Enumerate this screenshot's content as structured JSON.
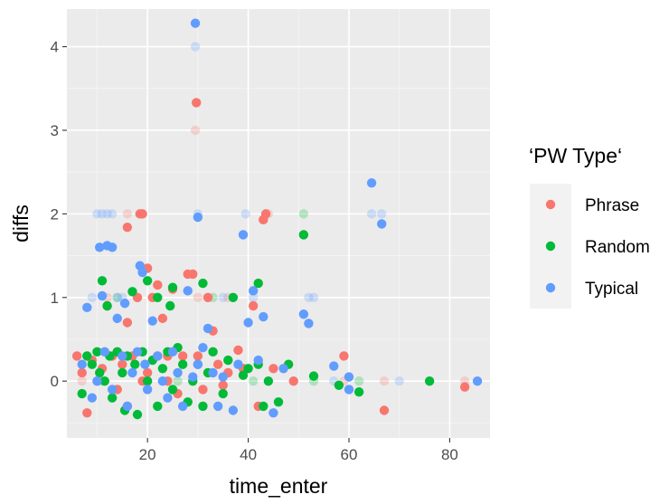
{
  "chart_data": {
    "type": "scatter",
    "xlabel": "time_enter",
    "ylabel": "diffs",
    "xlim": [
      4,
      88
    ],
    "ylim": [
      -0.68,
      4.45
    ],
    "x_ticks": [
      20,
      40,
      60,
      80
    ],
    "y_ticks": [
      0,
      1,
      2,
      3,
      4
    ],
    "grid": true,
    "legend": {
      "title": "‘PW Type‘",
      "position": "right"
    },
    "series": [
      {
        "name": "Phrase",
        "color": "#F8766D",
        "points": [
          [
            6,
            0.3
          ],
          [
            7,
            0.1
          ],
          [
            8,
            -0.38
          ],
          [
            9,
            0.25
          ],
          [
            10,
            0.0
          ],
          [
            11,
            0.15
          ],
          [
            12,
            0.9
          ],
          [
            13,
            0.3
          ],
          [
            14,
            -0.1
          ],
          [
            15,
            0.2
          ],
          [
            16,
            1.84
          ],
          [
            16,
            0.7
          ],
          [
            16,
            -0.3
          ],
          [
            17,
            0.3
          ],
          [
            18,
            1.0
          ],
          [
            18.5,
            2.0
          ],
          [
            19,
            2.0
          ],
          [
            19,
            0.0
          ],
          [
            20,
            1.35
          ],
          [
            20,
            0.1
          ],
          [
            21,
            1.0
          ],
          [
            22,
            1.15
          ],
          [
            22,
            0.3
          ],
          [
            23,
            0.75
          ],
          [
            24,
            0.0
          ],
          [
            24,
            0.3
          ],
          [
            25,
            1.1
          ],
          [
            26,
            -0.15
          ],
          [
            27,
            0.3
          ],
          [
            28,
            1.28
          ],
          [
            29,
            1.28
          ],
          [
            29.7,
            3.33
          ],
          [
            30,
            0.3
          ],
          [
            31,
            -0.1
          ],
          [
            32,
            1.0
          ],
          [
            33,
            0.6
          ],
          [
            34,
            0.2
          ],
          [
            35,
            -0.05
          ],
          [
            36,
            0.1
          ],
          [
            38,
            0.37
          ],
          [
            39,
            0.15
          ],
          [
            41,
            0.9
          ],
          [
            42,
            -0.3
          ],
          [
            43,
            1.93
          ],
          [
            43.5,
            2.0
          ],
          [
            45,
            0.15
          ],
          [
            49,
            0.0
          ],
          [
            59,
            0.3
          ],
          [
            67,
            -0.35
          ],
          [
            83,
            -0.07
          ]
        ]
      },
      {
        "name": "Random",
        "color": "#00BA38",
        "points": [
          [
            7,
            -0.15
          ],
          [
            8,
            0.3
          ],
          [
            9,
            0.2
          ],
          [
            10,
            0.35
          ],
          [
            10.5,
            0.1
          ],
          [
            11,
            1.2
          ],
          [
            11.5,
            0.0
          ],
          [
            12,
            0.9
          ],
          [
            12.5,
            0.3
          ],
          [
            13,
            -0.2
          ],
          [
            14,
            0.35
          ],
          [
            15,
            0.1
          ],
          [
            15.5,
            -0.35
          ],
          [
            16,
            0.3
          ],
          [
            17,
            1.07
          ],
          [
            17.5,
            0.2
          ],
          [
            18,
            -0.4
          ],
          [
            19,
            0.35
          ],
          [
            20,
            1.2
          ],
          [
            20,
            0.0
          ],
          [
            21,
            0.25
          ],
          [
            22,
            1.0
          ],
          [
            22,
            -0.3
          ],
          [
            23,
            0.15
          ],
          [
            24,
            0.35
          ],
          [
            24.5,
            0.9
          ],
          [
            25,
            1.12
          ],
          [
            25,
            -0.1
          ],
          [
            26,
            0.4
          ],
          [
            27,
            0.2
          ],
          [
            28,
            -0.25
          ],
          [
            29,
            0.0
          ],
          [
            30,
            0.2
          ],
          [
            31,
            1.17
          ],
          [
            31,
            -0.3
          ],
          [
            32,
            0.1
          ],
          [
            33,
            0.35
          ],
          [
            35,
            -0.15
          ],
          [
            36,
            0.25
          ],
          [
            37,
            1.0
          ],
          [
            39,
            0.07
          ],
          [
            40,
            0.15
          ],
          [
            42,
            1.17
          ],
          [
            42,
            0.2
          ],
          [
            43,
            -0.3
          ],
          [
            44,
            0.0
          ],
          [
            46,
            -0.25
          ],
          [
            48,
            0.2
          ],
          [
            51,
            1.75
          ],
          [
            53,
            0.06
          ],
          [
            58,
            -0.05
          ],
          [
            62,
            -0.13
          ],
          [
            76,
            0.0
          ]
        ]
      },
      {
        "name": "Typical",
        "color": "#619CFF",
        "points": [
          [
            7,
            0.2
          ],
          [
            8,
            0.88
          ],
          [
            9,
            -0.2
          ],
          [
            10,
            0.0
          ],
          [
            10.5,
            1.6
          ],
          [
            11,
            1.02
          ],
          [
            11.5,
            0.35
          ],
          [
            12,
            1.62
          ],
          [
            13,
            1.6
          ],
          [
            13,
            -0.1
          ],
          [
            14,
            0.75
          ],
          [
            15,
            0.3
          ],
          [
            15.5,
            0.93
          ],
          [
            16,
            -0.3
          ],
          [
            17,
            0.1
          ],
          [
            18,
            0.35
          ],
          [
            18.5,
            1.38
          ],
          [
            19,
            1.3
          ],
          [
            19.5,
            0.2
          ],
          [
            20,
            -0.1
          ],
          [
            21,
            0.72
          ],
          [
            22,
            0.3
          ],
          [
            23,
            0.0
          ],
          [
            24,
            -0.2
          ],
          [
            25,
            0.35
          ],
          [
            26,
            0.1
          ],
          [
            27,
            -0.3
          ],
          [
            28,
            1.08
          ],
          [
            29,
            0.05
          ],
          [
            29.5,
            4.28
          ],
          [
            30,
            1.96
          ],
          [
            30,
            0.2
          ],
          [
            31,
            0.4
          ],
          [
            32,
            0.63
          ],
          [
            33,
            0.1
          ],
          [
            34,
            -0.3
          ],
          [
            35,
            0.05
          ],
          [
            37,
            -0.35
          ],
          [
            38,
            0.2
          ],
          [
            39,
            1.75
          ],
          [
            40,
            0.7
          ],
          [
            41,
            1.08
          ],
          [
            42,
            0.25
          ],
          [
            43,
            0.77
          ],
          [
            45,
            -0.38
          ],
          [
            47,
            0.15
          ],
          [
            51,
            0.8
          ],
          [
            52,
            0.69
          ],
          [
            57,
            0.18
          ],
          [
            60,
            0.05
          ],
          [
            60,
            -0.1
          ],
          [
            64.5,
            2.37
          ],
          [
            66.5,
            1.88
          ],
          [
            85.5,
            0.0
          ]
        ]
      }
    ],
    "faded_points": [
      [
        7,
        0.0,
        "Phrase"
      ],
      [
        12,
        1.0,
        "Phrase"
      ],
      [
        16,
        2.0,
        "Phrase"
      ],
      [
        22,
        1.0,
        "Phrase"
      ],
      [
        29.5,
        3.0,
        "Phrase"
      ],
      [
        30,
        1.0,
        "Phrase"
      ],
      [
        36,
        1.0,
        "Phrase"
      ],
      [
        44,
        2.0,
        "Phrase"
      ],
      [
        59,
        0.0,
        "Phrase"
      ],
      [
        67,
        0.0,
        "Phrase"
      ],
      [
        83,
        0.0,
        "Phrase"
      ],
      [
        11,
        0.0,
        "Random"
      ],
      [
        14,
        1.0,
        "Random"
      ],
      [
        26,
        0.0,
        "Random"
      ],
      [
        33,
        1.0,
        "Random"
      ],
      [
        41,
        0.0,
        "Random"
      ],
      [
        51,
        2.0,
        "Random"
      ],
      [
        53,
        0.0,
        "Random"
      ],
      [
        62,
        0.0,
        "Random"
      ],
      [
        9,
        1.0,
        "Typical"
      ],
      [
        10,
        2.0,
        "Typical"
      ],
      [
        11,
        2.0,
        "Typical"
      ],
      [
        12,
        2.0,
        "Typical"
      ],
      [
        13,
        2.0,
        "Typical"
      ],
      [
        14,
        1.0,
        "Typical"
      ],
      [
        15,
        1.0,
        "Typical"
      ],
      [
        18,
        1.0,
        "Typical"
      ],
      [
        20,
        0.0,
        "Typical"
      ],
      [
        29.5,
        4.0,
        "Typical"
      ],
      [
        30,
        2.0,
        "Typical"
      ],
      [
        32,
        1.0,
        "Typical"
      ],
      [
        35,
        1.0,
        "Typical"
      ],
      [
        39.5,
        2.0,
        "Typical"
      ],
      [
        41,
        1.0,
        "Typical"
      ],
      [
        52,
        1.0,
        "Typical"
      ],
      [
        53,
        1.0,
        "Typical"
      ],
      [
        57,
        0.0,
        "Typical"
      ],
      [
        64.5,
        2.0,
        "Typical"
      ],
      [
        66.5,
        2.0,
        "Typical"
      ],
      [
        70,
        0.0,
        "Typical"
      ]
    ]
  }
}
